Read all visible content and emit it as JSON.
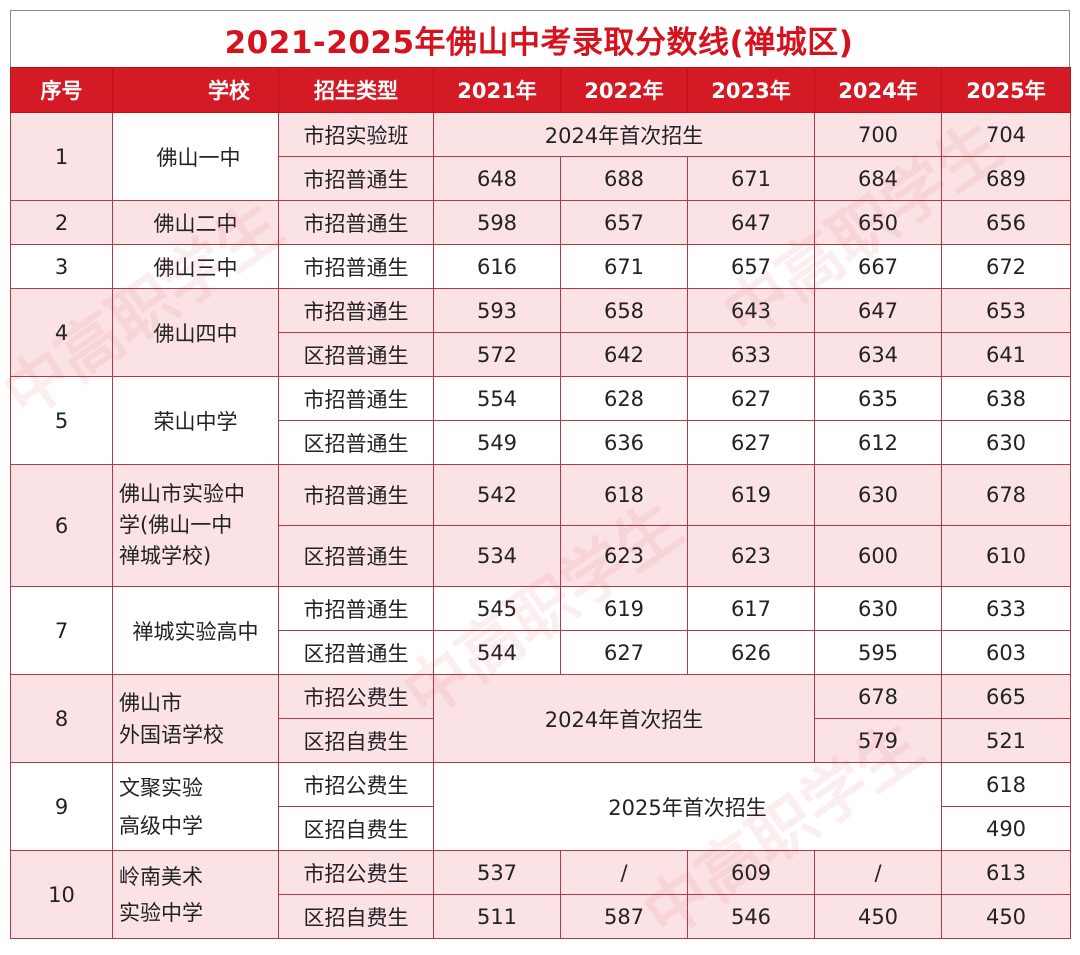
{
  "title": "2021-2025年佛山中考录取分数线(禅城区)",
  "headers": {
    "index": "序号",
    "school": "学校",
    "type": "招生类型",
    "y2021": "2021年",
    "y2022": "2022年",
    "y2023": "2023年",
    "y2024": "2024年",
    "y2025": "2025年"
  },
  "notes": {
    "first2024": "2024年首次招生",
    "first2025": "2025年首次招生",
    "slash": "/"
  },
  "schools": [
    {
      "index": "1",
      "name": "佛山一中",
      "rows": [
        {
          "type": "市招实验班",
          "y2024": "700",
          "y2025": "704"
        },
        {
          "type": "市招普通生",
          "y2021": "648",
          "y2022": "688",
          "y2023": "671",
          "y2024": "684",
          "y2025": "689"
        }
      ]
    },
    {
      "index": "2",
      "name": "佛山二中",
      "rows": [
        {
          "type": "市招普通生",
          "y2021": "598",
          "y2022": "657",
          "y2023": "647",
          "y2024": "650",
          "y2025": "656"
        }
      ]
    },
    {
      "index": "3",
      "name": "佛山三中",
      "rows": [
        {
          "type": "市招普通生",
          "y2021": "616",
          "y2022": "671",
          "y2023": "657",
          "y2024": "667",
          "y2025": "672"
        }
      ]
    },
    {
      "index": "4",
      "name": "佛山四中",
      "rows": [
        {
          "type": "市招普通生",
          "y2021": "593",
          "y2022": "658",
          "y2023": "643",
          "y2024": "647",
          "y2025": "653"
        },
        {
          "type": "区招普通生",
          "y2021": "572",
          "y2022": "642",
          "y2023": "633",
          "y2024": "634",
          "y2025": "641"
        }
      ]
    },
    {
      "index": "5",
      "name": "荣山中学",
      "rows": [
        {
          "type": "市招普通生",
          "y2021": "554",
          "y2022": "628",
          "y2023": "627",
          "y2024": "635",
          "y2025": "638"
        },
        {
          "type": "区招普通生",
          "y2021": "549",
          "y2022": "636",
          "y2023": "627",
          "y2024": "612",
          "y2025": "630"
        }
      ]
    },
    {
      "index": "6",
      "name_lines": [
        "佛山市实验中",
        "学(佛山一中",
        "禅城学校)"
      ],
      "rows": [
        {
          "type": "市招普通生",
          "y2021": "542",
          "y2022": "618",
          "y2023": "619",
          "y2024": "630",
          "y2025": "678"
        },
        {
          "type": "区招普通生",
          "y2021": "534",
          "y2022": "623",
          "y2023": "623",
          "y2024": "600",
          "y2025": "610"
        }
      ]
    },
    {
      "index": "7",
      "name": "禅城实验高中",
      "rows": [
        {
          "type": "市招普通生",
          "y2021": "545",
          "y2022": "619",
          "y2023": "617",
          "y2024": "630",
          "y2025": "633"
        },
        {
          "type": "区招普通生",
          "y2021": "544",
          "y2022": "627",
          "y2023": "626",
          "y2024": "595",
          "y2025": "603"
        }
      ]
    },
    {
      "index": "8",
      "name_lines": [
        "佛山市",
        "外国语学校"
      ],
      "rows": [
        {
          "type": "市招公费生",
          "y2024": "678",
          "y2025": "665"
        },
        {
          "type": "区招自费生",
          "y2024": "579",
          "y2025": "521"
        }
      ]
    },
    {
      "index": "9",
      "name_lines": [
        "文聚实验",
        "高级中学"
      ],
      "rows": [
        {
          "type": "市招公费生",
          "y2025": "618"
        },
        {
          "type": "区招自费生",
          "y2025": "490"
        }
      ]
    },
    {
      "index": "10",
      "name_lines": [
        "岭南美术",
        "实验中学"
      ],
      "rows": [
        {
          "type": "市招公费生",
          "y2021": "537",
          "y2022": "/",
          "y2023": "609",
          "y2024": "/",
          "y2025": "613"
        },
        {
          "type": "区招自费生",
          "y2021": "511",
          "y2022": "587",
          "y2023": "546",
          "y2024": "450",
          "y2025": "450"
        }
      ]
    }
  ],
  "watermark": "中高职学生"
}
